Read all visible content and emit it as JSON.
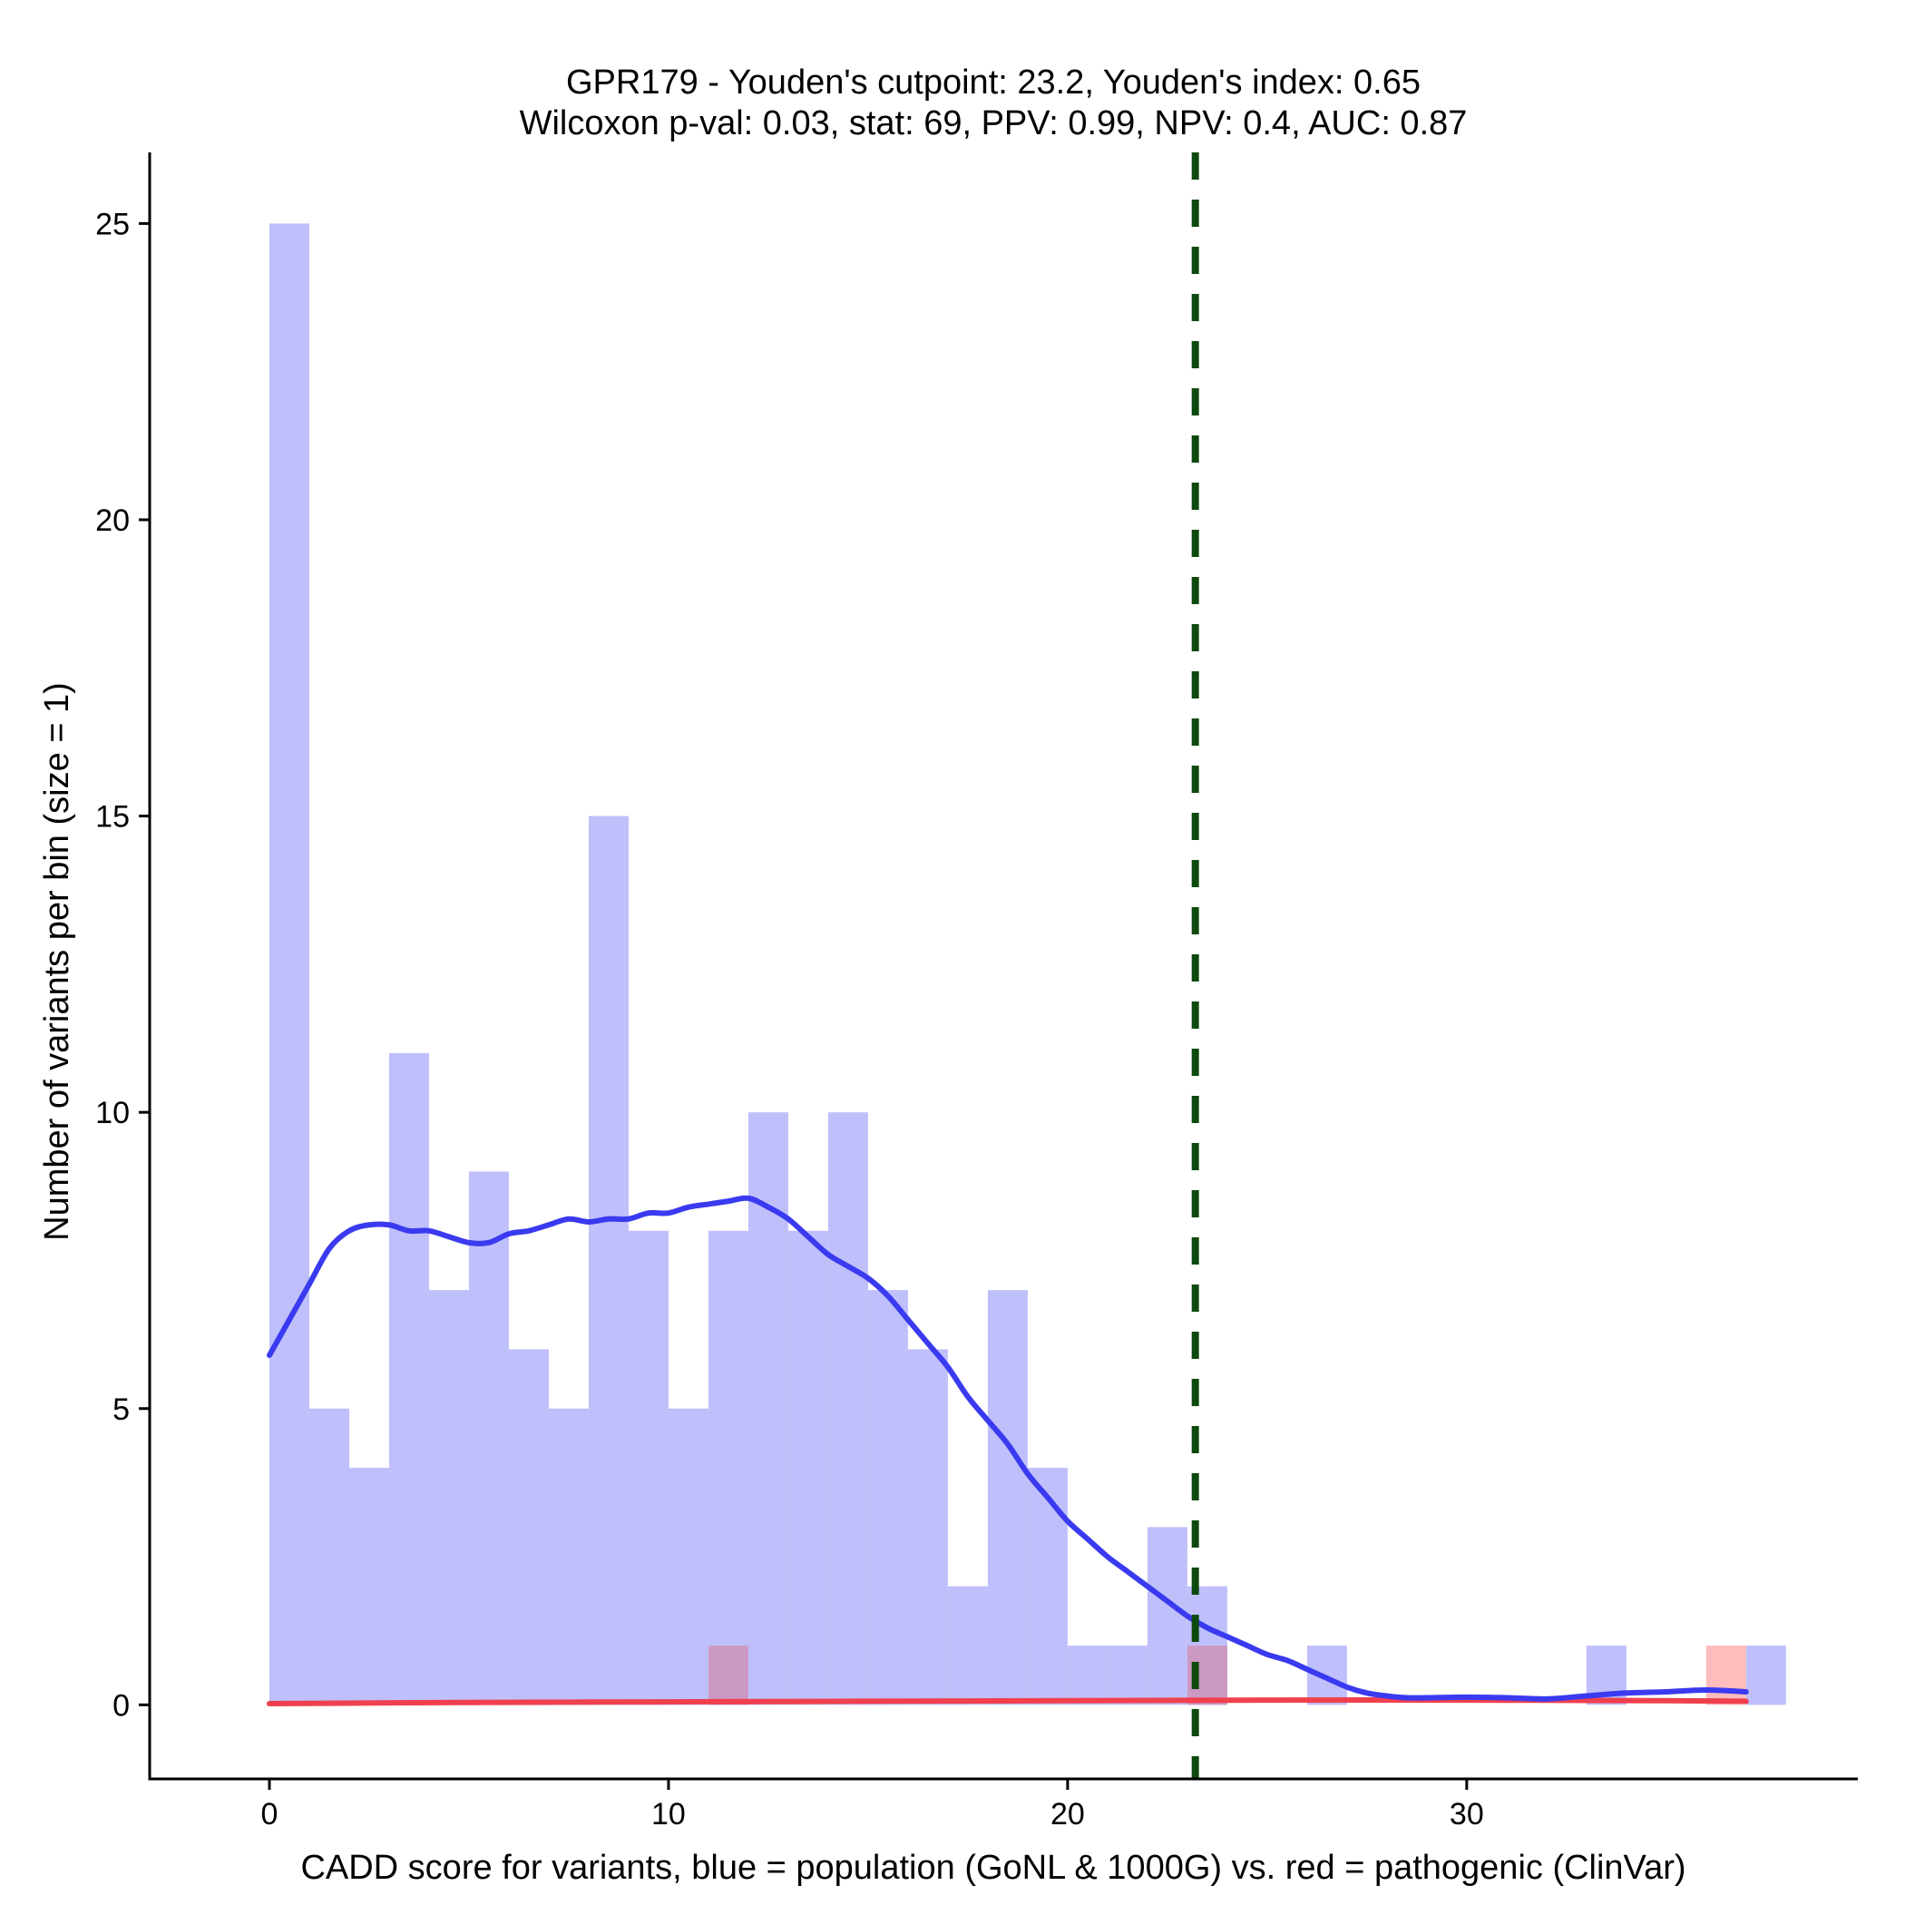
{
  "chart_data": {
    "type": "bar",
    "title_line1": "GPR179 - Youden's cutpoint: 23.2, Youden's index: 0.65",
    "title_line2": "Wilcoxon p-val: 0.03, stat: 69, PPV: 0.99, NPV: 0.4, AUC: 0.87",
    "xlabel": "CADD score for variants, blue = population (GoNL & 1000G) vs. red = pathogenic (ClinVar)",
    "ylabel": "Number of variants per bin (size = 1)",
    "xlim": [
      -3,
      39.8
    ],
    "ylim": [
      -1.25,
      26.2
    ],
    "xticks": [
      0,
      10,
      20,
      30
    ],
    "yticks": [
      0,
      5,
      10,
      15,
      20,
      25
    ],
    "bin_width": 1,
    "cutpoint": 23.2,
    "colors": {
      "population_bar": "#bfbffb",
      "pathogenic_bar": "#ffbcbc",
      "overlap_bar": "#cc99c4",
      "population_line": "#3a3af0",
      "pathogenic_line": "#f0404e",
      "cutpoint_line": "#0d4a0d"
    },
    "series": [
      {
        "name": "population (GoNL & 1000G)",
        "bin_starts": [
          0,
          1,
          2,
          3,
          4,
          5,
          6,
          7,
          8,
          9,
          10,
          11,
          12,
          13,
          14,
          15,
          16,
          17,
          18,
          19,
          20,
          21,
          22,
          23,
          24,
          25,
          26,
          27,
          28,
          29,
          30,
          31,
          32,
          33,
          34,
          35,
          36,
          37
        ],
        "values": [
          25,
          5,
          4,
          11,
          7,
          9,
          6,
          5,
          15,
          8,
          5,
          8,
          10,
          8,
          10,
          7,
          6,
          2,
          7,
          4,
          1,
          1,
          3,
          2,
          0,
          0,
          1,
          0,
          0,
          0,
          0,
          0,
          0,
          1,
          0,
          0,
          0,
          1
        ]
      },
      {
        "name": "pathogenic (ClinVar)",
        "bin_starts": [
          11,
          23,
          36
        ],
        "values": [
          1,
          1,
          1
        ]
      }
    ],
    "density_population": {
      "x": [
        0,
        0.5,
        1,
        1.5,
        2,
        2.5,
        3,
        3.5,
        4,
        4.5,
        5,
        5.5,
        6,
        6.5,
        7,
        7.5,
        8,
        8.5,
        9,
        9.5,
        10,
        10.5,
        11,
        11.5,
        12,
        12.5,
        13,
        13.5,
        14,
        14.5,
        15,
        15.5,
        16,
        16.5,
        17,
        17.5,
        18,
        18.5,
        19,
        19.5,
        20,
        20.5,
        21,
        21.5,
        22,
        22.5,
        23,
        23.5,
        24,
        24.5,
        25,
        25.5,
        26,
        26.5,
        27,
        27.5,
        28,
        28.5,
        29,
        30,
        31,
        32,
        33,
        34,
        35,
        36,
        37
      ],
      "y": [
        5.9,
        6.5,
        7.1,
        7.7,
        8.0,
        8.1,
        8.1,
        8.0,
        8.0,
        7.9,
        7.8,
        7.8,
        7.95,
        8.0,
        8.1,
        8.2,
        8.15,
        8.2,
        8.2,
        8.3,
        8.3,
        8.4,
        8.45,
        8.5,
        8.55,
        8.4,
        8.2,
        7.9,
        7.6,
        7.4,
        7.2,
        6.9,
        6.5,
        6.1,
        5.7,
        5.2,
        4.8,
        4.4,
        3.9,
        3.5,
        3.1,
        2.8,
        2.5,
        2.25,
        2.0,
        1.75,
        1.5,
        1.3,
        1.15,
        1.0,
        0.85,
        0.75,
        0.6,
        0.45,
        0.3,
        0.2,
        0.15,
        0.12,
        0.12,
        0.13,
        0.12,
        0.1,
        0.15,
        0.2,
        0.22,
        0.25,
        0.22
      ]
    },
    "density_pathogenic": {
      "x": [
        0,
        5,
        10,
        15,
        20,
        25,
        30,
        35,
        37
      ],
      "y": [
        0.02,
        0.04,
        0.05,
        0.06,
        0.07,
        0.08,
        0.08,
        0.07,
        0.06
      ]
    }
  }
}
